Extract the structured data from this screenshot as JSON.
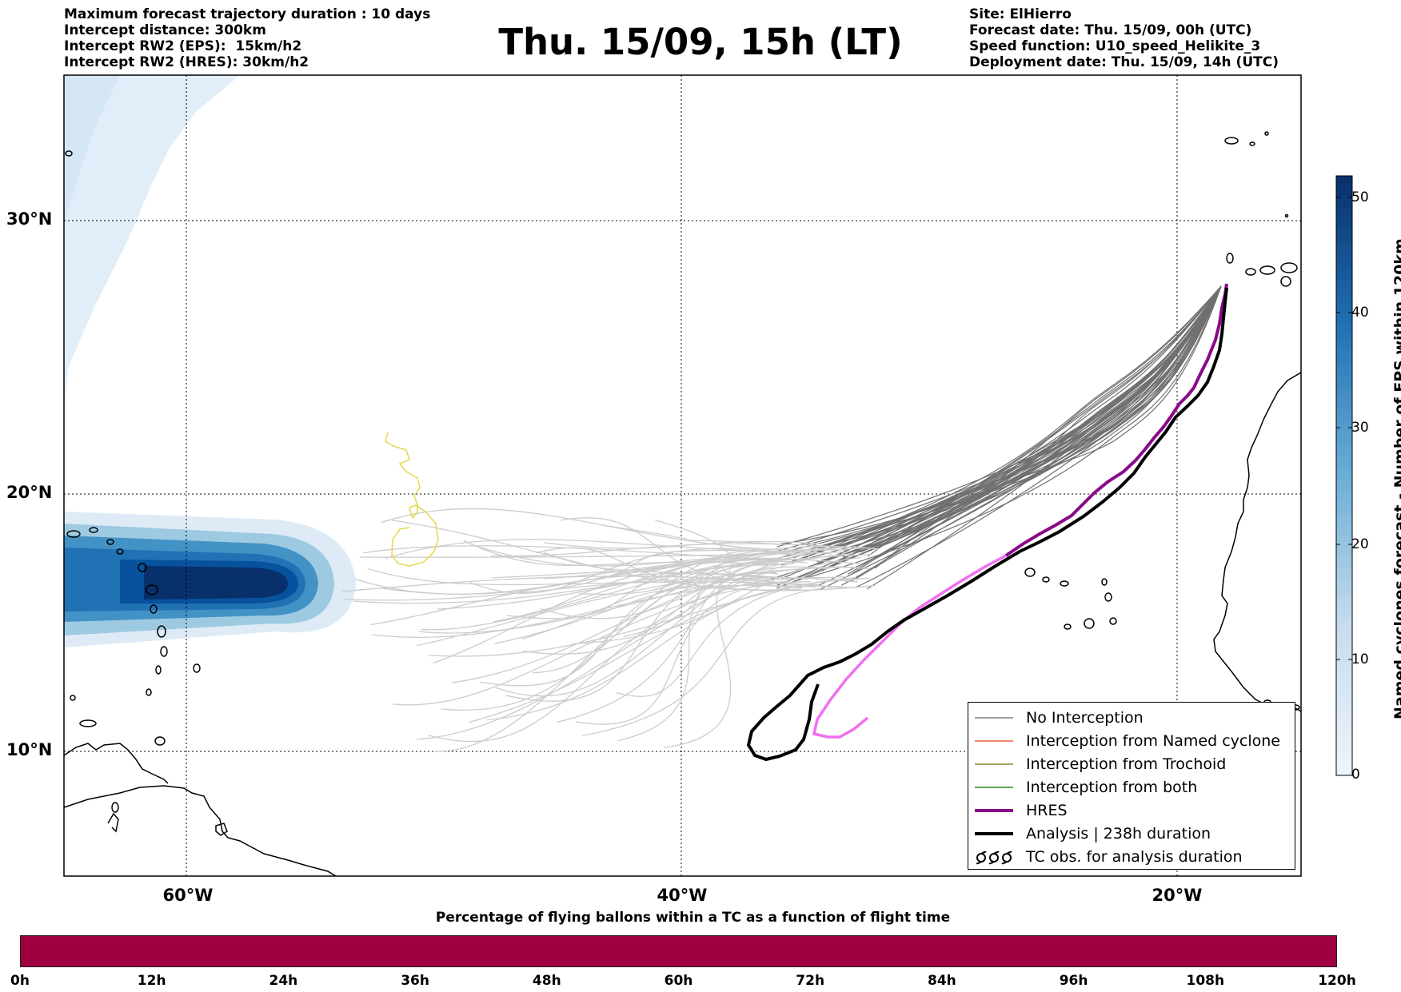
{
  "header": {
    "left_lines": [
      "Maximum forecast trajectory duration : 10 days",
      "Intercept distance: 300km",
      "Intercept RW2 (EPS):  15km/h2",
      "Intercept RW2 (HRES): 30km/h2"
    ],
    "title": "Thu. 15/09, 15h (LT)",
    "right_lines": [
      "Site: ElHierro",
      "Forecast date: Thu. 15/09, 00h (UTC)",
      "Speed function: U10_speed_Helikite_3",
      "Deployment date: Thu. 15/09, 14h (UTC)"
    ]
  },
  "map": {
    "lat_labels": [
      "30°N",
      "20°N",
      "10°N"
    ],
    "lon_labels": [
      "60°W",
      "40°W",
      "20°W"
    ],
    "extent": {
      "lon": [
        -65,
        -15
      ],
      "lat": [
        5,
        34.5
      ]
    },
    "colors": {
      "land_outline": "#000000",
      "gridlines": "#000000",
      "eps_trajectories": "#cccccc",
      "no_interception": "#707070",
      "hres": "#8a0a8a",
      "hres_light": "#f070f0",
      "analysis": "#000000",
      "yellow_track": "#e6d84a"
    }
  },
  "colorbar": {
    "title": "Named cyclones forecast - Number of EPS within 120km",
    "ticks": [
      "50",
      "40",
      "30",
      "20",
      "10",
      "0"
    ],
    "range": [
      0,
      52
    ],
    "colors": [
      "#eef5fc",
      "#c7dcef",
      "#6baed6",
      "#2171b5",
      "#08306b"
    ]
  },
  "legend": {
    "items": [
      {
        "label": "No Interception",
        "color": "#808080",
        "style": "line-thin"
      },
      {
        "label": "Interception from Named cyclone",
        "color": "#e8603c",
        "style": "line-thin"
      },
      {
        "label": "Interception from Trochoid",
        "color": "#8a8a2a",
        "style": "line-thin"
      },
      {
        "label": "Interception from both",
        "color": "#2a8a2a",
        "style": "line-thin"
      },
      {
        "label": "HRES",
        "color": "#8a0a8a",
        "style": "line-thick"
      },
      {
        "label": "Analysis | 238h duration",
        "color": "#000000",
        "style": "line-thick"
      },
      {
        "label": "TC obs. for analysis duration",
        "color": "#000000",
        "style": "tc-symbol"
      }
    ]
  },
  "time_bar": {
    "title": "Percentage of flying ballons within a TC as a function of flight time",
    "ticks": [
      "0h",
      "12h",
      "24h",
      "36h",
      "48h",
      "60h",
      "72h",
      "84h",
      "96h",
      "108h",
      "120h"
    ],
    "color": "#9e0040"
  }
}
